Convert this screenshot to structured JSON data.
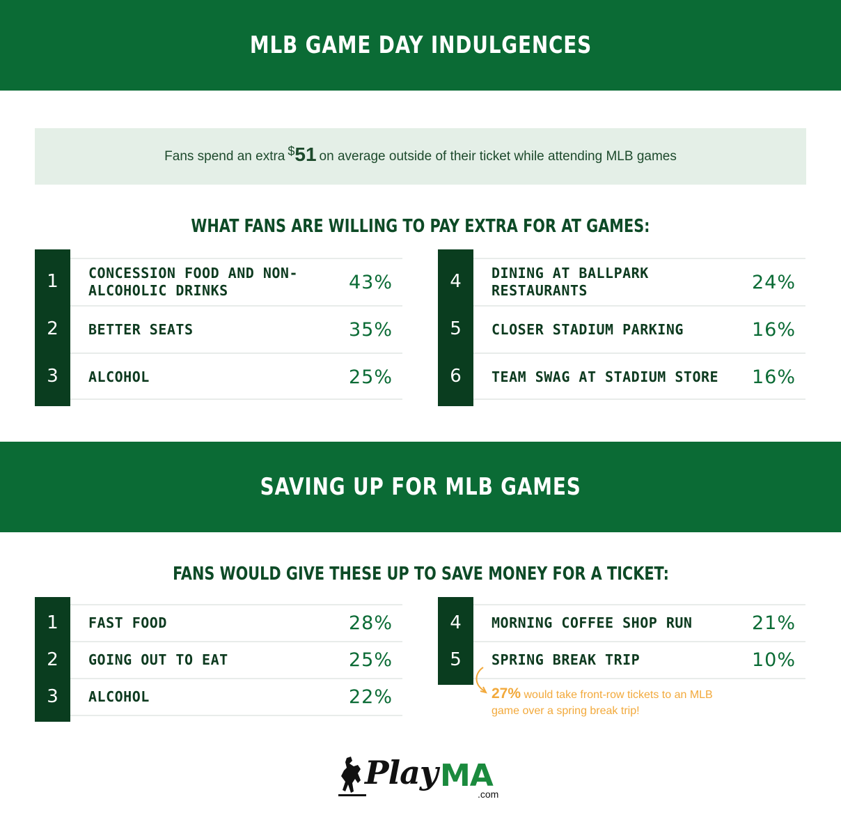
{
  "section1": {
    "title": "MLB GAME DAY INDULGENCES",
    "callout": {
      "prefix": "Fans spend an extra",
      "currency": "$",
      "amount": "51",
      "suffix": "on average outside of their ticket while attending MLB games"
    },
    "subhead": "WHAT FANS ARE WILLING TO PAY EXTRA FOR AT GAMES:",
    "left_items": [
      {
        "rank": "1",
        "label": "CONCESSION FOOD AND NON-ALCOHOLIC DRINKS",
        "pct": "43%"
      },
      {
        "rank": "2",
        "label": "BETTER SEATS",
        "pct": "35%"
      },
      {
        "rank": "3",
        "label": "ALCOHOL",
        "pct": "25%"
      }
    ],
    "right_items": [
      {
        "rank": "4",
        "label": "DINING AT BALLPARK RESTAURANTS",
        "pct": "24%"
      },
      {
        "rank": "5",
        "label": "CLOSER STADIUM PARKING",
        "pct": "16%"
      },
      {
        "rank": "6",
        "label": "TEAM SWAG AT STADIUM STORE",
        "pct": "16%"
      }
    ]
  },
  "section2": {
    "title": "SAVING UP FOR MLB GAMES",
    "subhead": "FANS WOULD GIVE THESE UP TO SAVE MONEY FOR A TICKET:",
    "left_items": [
      {
        "rank": "1",
        "label": "FAST FOOD",
        "pct": "28%"
      },
      {
        "rank": "2",
        "label": "GOING OUT TO EAT",
        "pct": "25%"
      },
      {
        "rank": "3",
        "label": "ALCOHOL",
        "pct": "22%"
      }
    ],
    "right_items": [
      {
        "rank": "4",
        "label": "MORNING COFFEE SHOP RUN",
        "pct": "21%"
      },
      {
        "rank": "5",
        "label": "SPRING BREAK TRIP",
        "pct": "10%"
      }
    ],
    "note": {
      "value": "27%",
      "text": "would take front-row tickets to an MLB game over a spring break trip!"
    }
  },
  "logo": {
    "word": "Play",
    "accent": "MA",
    "suffix": ".com"
  },
  "colors": {
    "banner": "#0b6b35",
    "badge": "#0a3d1f",
    "callout_bg": "#e4efe7",
    "note": "#f2a93b"
  }
}
